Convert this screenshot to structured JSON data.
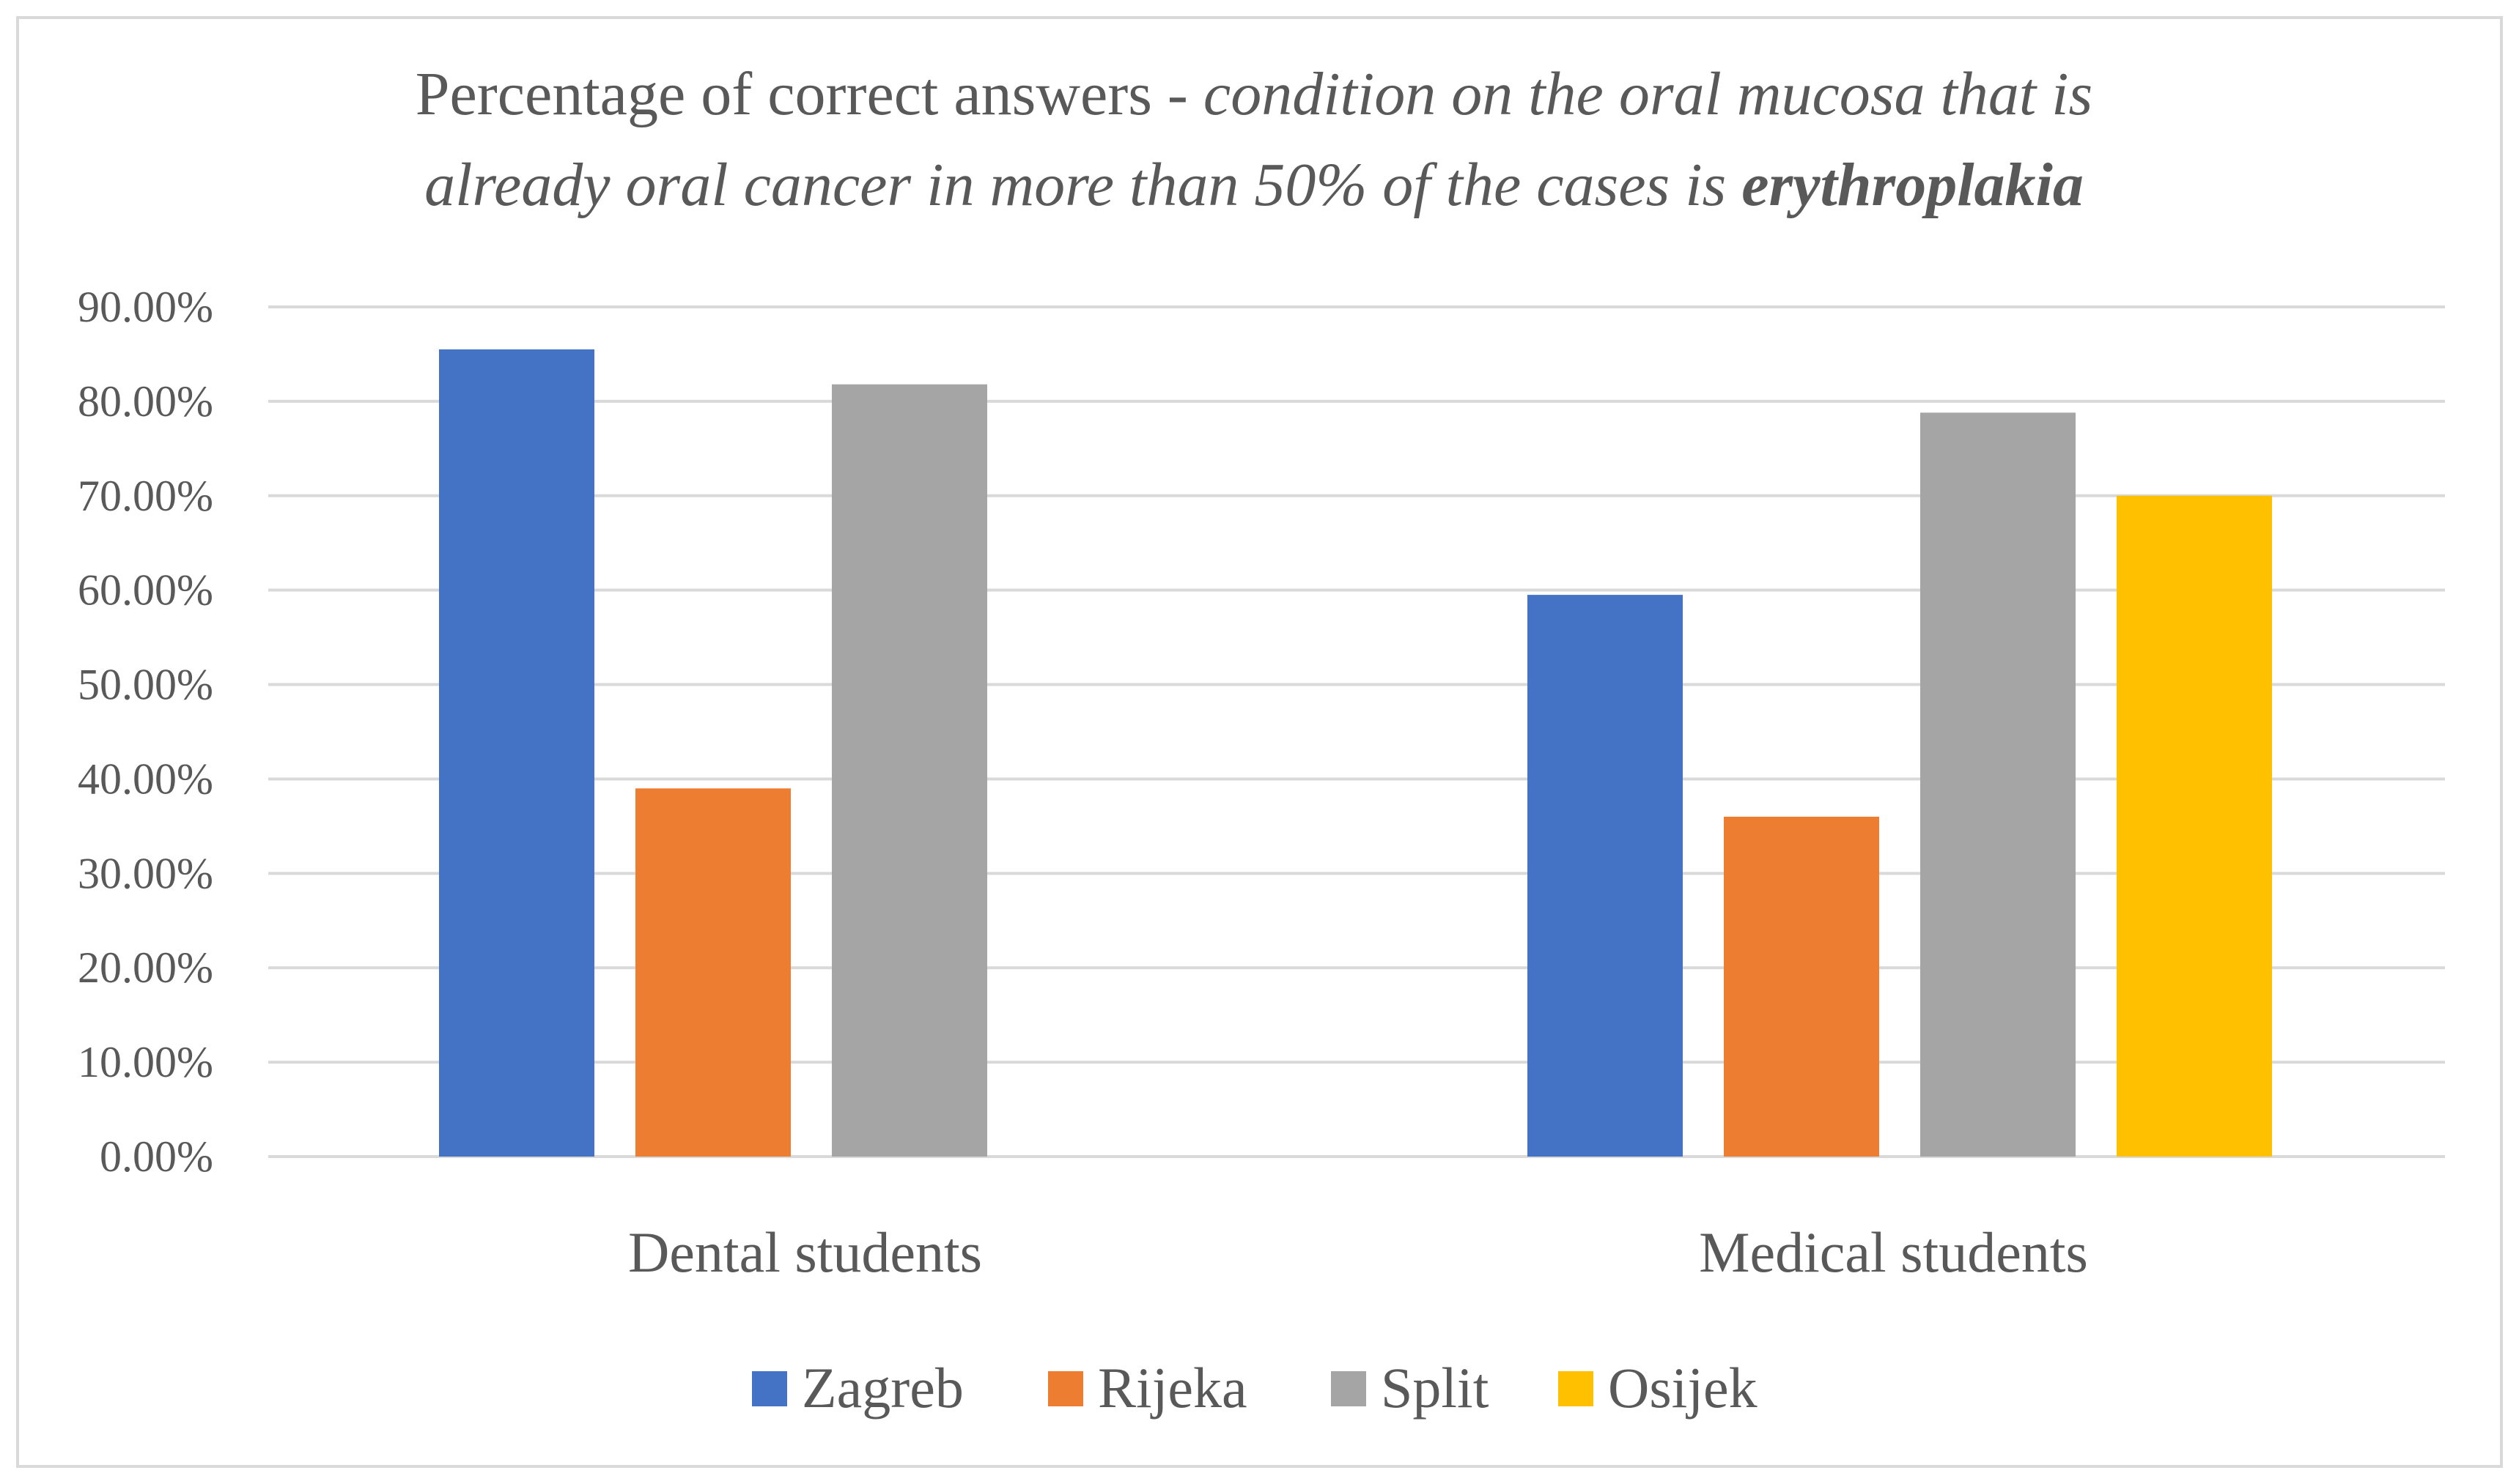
{
  "chart_data": {
    "type": "bar",
    "title": {
      "line1_plain": "Percentage of correct answers - ",
      "line1_italic": "condition on the oral mucosa that is",
      "line2_italic": "already oral cancer in more than 50% of the cases is ",
      "line2_bold_italic": "erythroplakia"
    },
    "categories": [
      "Dental students",
      "Medical students"
    ],
    "series": [
      {
        "name": "Zagreb",
        "color": "#4472C4",
        "values": [
          0.855,
          0.595
        ]
      },
      {
        "name": "Rijeka",
        "color": "#ED7D31",
        "values": [
          0.39,
          0.36
        ]
      },
      {
        "name": "Split",
        "color": "#A5A5A5",
        "values": [
          0.818,
          0.788
        ]
      },
      {
        "name": "Osijek",
        "color": "#FFC000",
        "values": [
          null,
          0.7
        ]
      }
    ],
    "y_ticks": [
      "0.00%",
      "10.00%",
      "20.00%",
      "30.00%",
      "40.00%",
      "50.00%",
      "60.00%",
      "70.00%",
      "80.00%",
      "90.00%"
    ],
    "ylim": [
      0,
      0.9
    ],
    "xlabel": "",
    "ylabel": "",
    "legend_position": "bottom",
    "grid": true
  }
}
